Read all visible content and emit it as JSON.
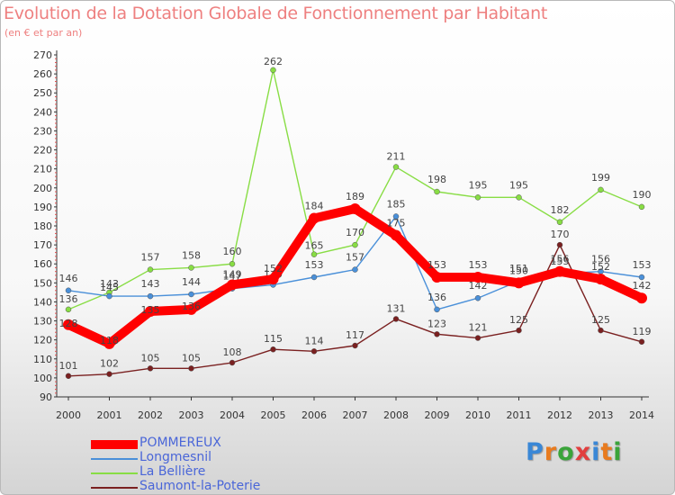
{
  "header": {
    "title": "Evolution de la Dotation Globale de Fonctionnement par Habitant",
    "subtitle": "(en € et par an)"
  },
  "logo": {
    "text": "Proxiti",
    "colors": [
      "#3a87d6",
      "#e87b1f",
      "#3aa43a",
      "#e23e3e",
      "#3a87d6",
      "#e87b1f",
      "#3aa43a"
    ]
  },
  "chart_data": {
    "type": "line",
    "x": [
      "2000",
      "2001",
      "2002",
      "2003",
      "2004",
      "2005",
      "2006",
      "2007",
      "2008",
      "2009",
      "2010",
      "2011",
      "2012",
      "2013",
      "2014"
    ],
    "ylim": [
      90,
      270
    ],
    "yticks": [
      90,
      100,
      110,
      120,
      130,
      140,
      150,
      160,
      170,
      180,
      190,
      200,
      210,
      220,
      230,
      240,
      250,
      260,
      270
    ],
    "grid": false,
    "legend_position": "bottom-left",
    "series": [
      {
        "name": "POMMEREUX",
        "color": "#ff0000",
        "values": [
          128,
          118,
          135,
          136,
          149,
          152,
          184,
          189,
          175,
          153,
          153,
          150,
          156,
          152,
          142
        ]
      },
      {
        "name": "Longmesnil",
        "color": "#4a90d9",
        "values": [
          146,
          143,
          143,
          144,
          147,
          149,
          153,
          157,
          185,
          136,
          142,
          151,
          155,
          156,
          153
        ]
      },
      {
        "name": "La Bellière",
        "color": "#88dd44",
        "values": [
          136,
          145,
          157,
          158,
          160,
          262,
          165,
          170,
          211,
          198,
          195,
          195,
          182,
          199,
          190
        ]
      },
      {
        "name": "Saumont-la-Poterie",
        "color": "#7a2020",
        "values": [
          101,
          102,
          105,
          105,
          108,
          115,
          114,
          117,
          131,
          123,
          121,
          125,
          170,
          125,
          119
        ]
      }
    ]
  }
}
